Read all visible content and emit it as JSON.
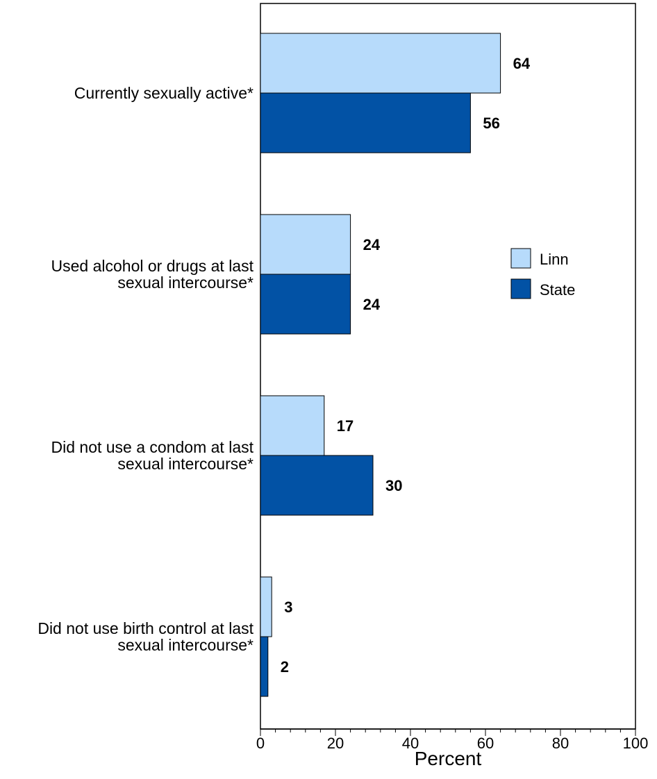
{
  "chart_data": {
    "type": "bar",
    "orientation": "horizontal",
    "categories": [
      [
        "Currently sexually active*"
      ],
      [
        "Used alcohol or drugs at last",
        "sexual intercourse*"
      ],
      [
        "Did not use a condom at last",
        " sexual intercourse*"
      ],
      [
        "Did not use birth control at last",
        "sexual intercourse*"
      ]
    ],
    "series": [
      {
        "name": "Linn",
        "color": "#b7dbfb",
        "values": [
          64,
          24,
          17,
          3
        ]
      },
      {
        "name": "State",
        "color": "#0252a5",
        "values": [
          56,
          24,
          30,
          2
        ]
      }
    ],
    "xlabel": "Percent",
    "xlim": [
      0,
      100
    ],
    "xticks": [
      "0",
      "20",
      "40",
      "60",
      "80",
      "100"
    ],
    "legend_position": "right",
    "grid": false
  }
}
